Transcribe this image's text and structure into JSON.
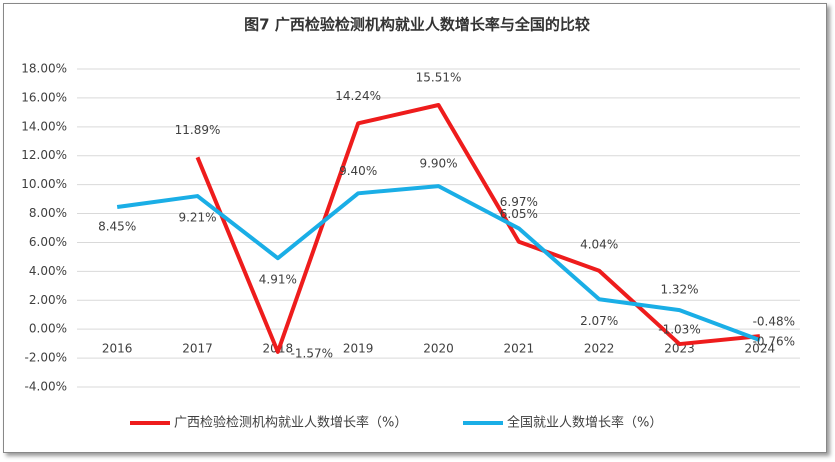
{
  "chart_data": {
    "type": "line",
    "title": "图7 广西检验检测机构就业人数增长率与全国的比较",
    "categories": [
      "2016",
      "2017",
      "2018",
      "2019",
      "2020",
      "2021",
      "2022",
      "2023",
      "2024"
    ],
    "series": [
      {
        "name": "广西检验检测机构就业人数增长率（%）",
        "color": "#ee1c1c",
        "values": [
          null,
          11.89,
          -1.57,
          14.24,
          15.51,
          6.05,
          4.04,
          -1.03,
          -0.48
        ],
        "value_labels": [
          null,
          "11.89%",
          "-1.57%",
          "14.24%",
          "15.51%",
          "6.05%",
          "4.04%",
          "-1.03%",
          "-0.48%"
        ]
      },
      {
        "name": "全国就业人数增长率（%）",
        "color": "#1aaee6",
        "values": [
          8.45,
          9.21,
          4.91,
          9.4,
          9.9,
          6.97,
          2.07,
          1.32,
          -0.76
        ],
        "value_labels": [
          "8.45%",
          "9.21%",
          "4.91%",
          "9.40%",
          "9.90%",
          "6.97%",
          "2.07%",
          "1.32%",
          "-0.76%"
        ]
      }
    ],
    "ylim": [
      -4,
      18
    ],
    "yticks": [
      {
        "value": -4,
        "label": "-4.00%"
      },
      {
        "value": -2,
        "label": "-2.00%"
      },
      {
        "value": 0,
        "label": "0.00%"
      },
      {
        "value": 2,
        "label": "2.00%"
      },
      {
        "value": 4,
        "label": "4.00%"
      },
      {
        "value": 6,
        "label": "6.00%"
      },
      {
        "value": 8,
        "label": "8.00%"
      },
      {
        "value": 10,
        "label": "10.00%"
      },
      {
        "value": 12,
        "label": "12.00%"
      },
      {
        "value": 14,
        "label": "14.00%"
      },
      {
        "value": 16,
        "label": "16.00%"
      },
      {
        "value": 18,
        "label": "18.00%"
      }
    ],
    "grid": true,
    "legend": "bottom"
  }
}
